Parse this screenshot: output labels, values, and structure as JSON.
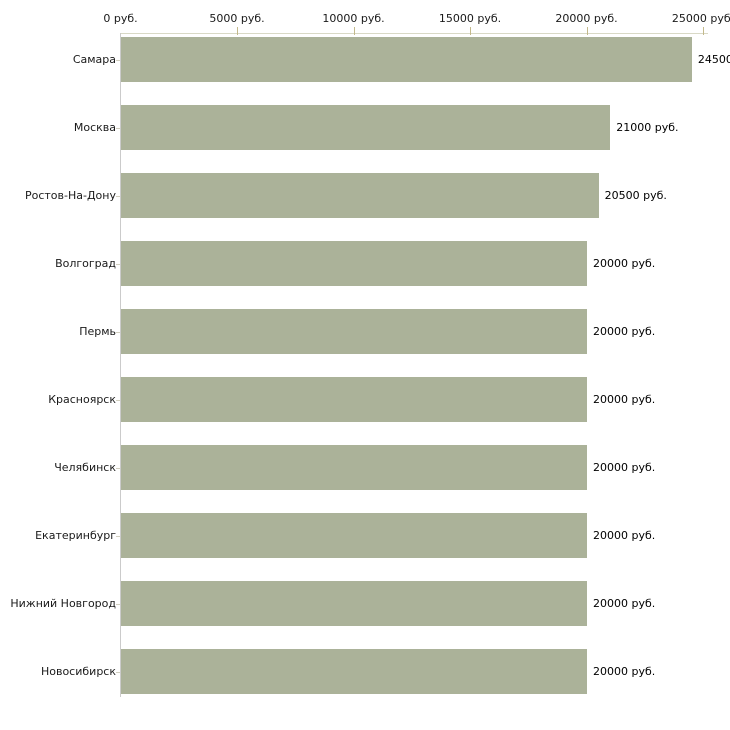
{
  "chart_data": {
    "type": "bar",
    "orientation": "horizontal",
    "title": "",
    "xlabel": "",
    "ylabel": "",
    "unit": "руб.",
    "xlim": [
      0,
      25000
    ],
    "x_tick_values": [
      0,
      5000,
      10000,
      15000,
      20000,
      25000
    ],
    "x_tick_labels": [
      "0 руб.",
      "5000 руб.",
      "10000 руб.",
      "15000 руб.",
      "20000 руб.",
      "25000 руб."
    ],
    "categories": [
      "Самара",
      "Москва",
      "Ростов-На-Дону",
      "Волгоград",
      "Пермь",
      "Красноярск",
      "Челябинск",
      "Екатеринбург",
      "Нижний Новгород",
      "Новосибирск"
    ],
    "values": [
      24500,
      21000,
      20500,
      20000,
      20000,
      20000,
      20000,
      20000,
      20000,
      20000
    ],
    "value_labels": [
      "24500",
      "21000 руб.",
      "20500 руб.",
      "20000 руб.",
      "20000 руб.",
      "20000 руб.",
      "20000 руб.",
      "20000 руб.",
      "20000 руб.",
      "20000 руб."
    ],
    "grid": false,
    "legend": null
  },
  "colors": {
    "background": "#ffffff",
    "bar_fill": "#abb299",
    "x_axis_line": "#d9d9c6",
    "y_axis_line": "#cbcbcb",
    "x_tick_mark": "#c3b98b",
    "y_tick_mark": "#d2cfc0",
    "text": "#1a1a1a"
  }
}
